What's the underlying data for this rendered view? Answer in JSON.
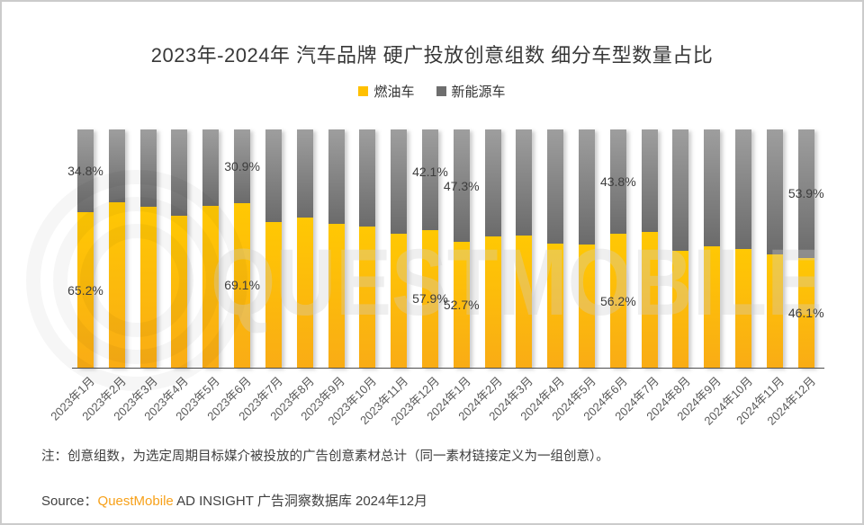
{
  "title": "2023年-2024年 汽车品牌 硬广投放创意组数 细分车型数量占比",
  "legend": [
    {
      "label": "燃油车",
      "color": "#FFC000"
    },
    {
      "label": "新能源车",
      "color": "#6E6E6E"
    }
  ],
  "chart_data": {
    "type": "bar",
    "stacked": true,
    "unit": "%",
    "ylim": [
      0,
      100
    ],
    "grid": false,
    "legend_position": "top",
    "title": "2023年-2024年 汽车品牌 硬广投放创意组数 细分车型数量占比",
    "categories": [
      "2023年1月",
      "2023年2月",
      "2023年3月",
      "2023年4月",
      "2023年5月",
      "2023年6月",
      "2023年7月",
      "2023年8月",
      "2023年9月",
      "2023年10月",
      "2023年11月",
      "2023年12月",
      "2024年1月",
      "2024年2月",
      "2024年3月",
      "2024年4月",
      "2024年5月",
      "2024年6月",
      "2024年7月",
      "2024年8月",
      "2024年9月",
      "2024年10月",
      "2024年11月",
      "2024年12月"
    ],
    "series": [
      {
        "name": "燃油车",
        "color": "#FFC000",
        "values": [
          65.2,
          69.5,
          67.4,
          63.7,
          67.8,
          69.1,
          61.2,
          63.2,
          60.3,
          59.2,
          56.4,
          57.9,
          52.7,
          55.1,
          55.3,
          52.2,
          51.7,
          56.2,
          56.9,
          49.1,
          50.9,
          49.7,
          47.5,
          46.1
        ]
      },
      {
        "name": "新能源车",
        "color": "#6E6E6E",
        "values": [
          34.8,
          30.5,
          32.6,
          36.3,
          32.2,
          30.9,
          38.8,
          36.8,
          39.7,
          40.8,
          43.6,
          42.1,
          47.3,
          44.9,
          44.7,
          47.8,
          48.3,
          43.8,
          43.1,
          50.9,
          49.1,
          50.3,
          52.5,
          53.9
        ]
      }
    ],
    "labeled_points": [
      {
        "index": 0,
        "fuel_label": "65.2%",
        "nev_label": "34.8%",
        "nev_dy": 0
      },
      {
        "index": 5,
        "fuel_label": "69.1%",
        "nev_label": "30.9%",
        "nev_dy": 0
      },
      {
        "index": 11,
        "fuel_label": "57.9%",
        "nev_label": "42.1%",
        "nev_dy": -9
      },
      {
        "index": 12,
        "fuel_label": "52.7%",
        "nev_label": "47.3%",
        "nev_dy": 0
      },
      {
        "index": 17,
        "fuel_label": "56.2%",
        "nev_label": "43.8%",
        "nev_dy": 0
      },
      {
        "index": 23,
        "fuel_label": "46.1%",
        "nev_label": "53.9%",
        "nev_dy": 0
      }
    ]
  },
  "watermark_text": "QUESTMOBILE",
  "note": "注：创意组数，为选定周期目标媒介被投放的广告创意素材总计（同一素材链接定义为一组创意）。",
  "source": {
    "prefix": "Source：",
    "brand": "QuestMobile",
    "suffix": " AD INSIGHT 广告洞察数据库 2024年12月"
  }
}
